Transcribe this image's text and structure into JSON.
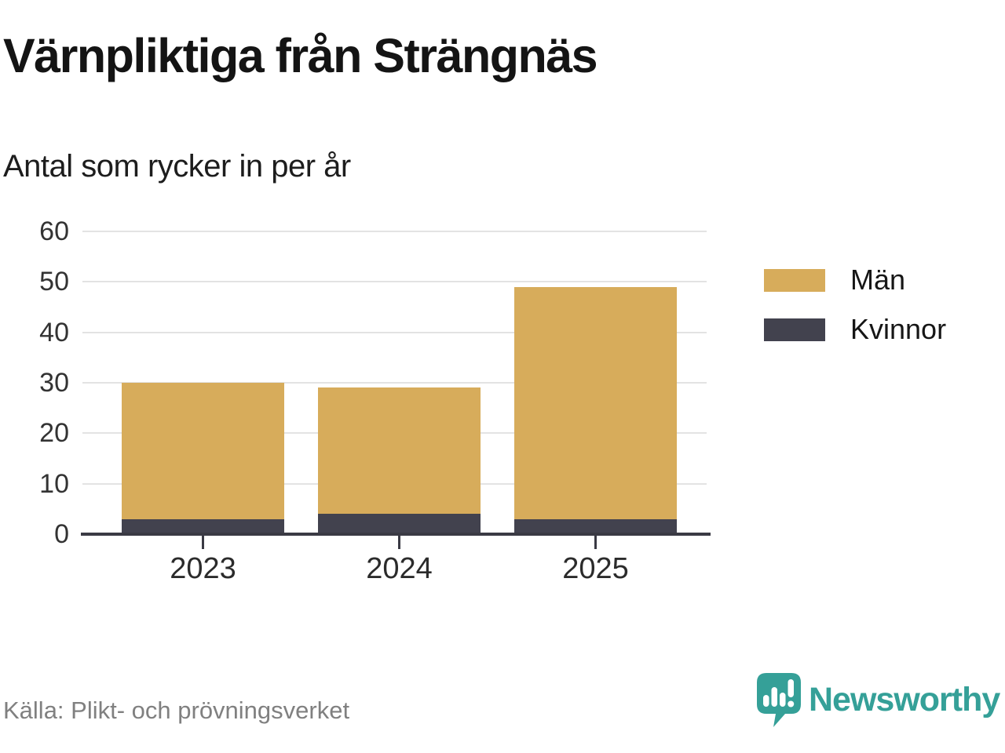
{
  "header": {
    "title": "Värnpliktiga från Strängnäs",
    "subtitle": "Antal som rycker in per år"
  },
  "chart_data": {
    "type": "bar",
    "stacked": true,
    "title": "Värnpliktiga från Strängnäs",
    "subtitle": "Antal som rycker in per år",
    "categories": [
      "2023",
      "2024",
      "2025"
    ],
    "series": [
      {
        "name": "Män",
        "color": "#D7AC5B",
        "values": [
          27,
          25,
          46
        ]
      },
      {
        "name": "Kvinnor",
        "color": "#42424E",
        "values": [
          3,
          4,
          3
        ]
      }
    ],
    "stack_order_bottom_to_top": [
      "Kvinnor",
      "Män"
    ],
    "totals": [
      30,
      29,
      49
    ],
    "xlabel": "",
    "ylabel": "Antal som rycker in per år",
    "ylim": [
      0,
      60
    ],
    "y_ticks": [
      0,
      10,
      20,
      30,
      40,
      50,
      60
    ],
    "grid": "horizontal",
    "legend_position": "right"
  },
  "footer": {
    "source": "Källa: Plikt- och prövningsverket",
    "brand": "Newsworthy"
  },
  "colors": {
    "men": "#D7AC5B",
    "women": "#42424E",
    "brand_teal": "#35A098",
    "gridline": "#E3E3E3",
    "axis": "#3A3A44",
    "text_primary": "#141414",
    "text_axis": "#333333",
    "text_muted": "#808080"
  }
}
